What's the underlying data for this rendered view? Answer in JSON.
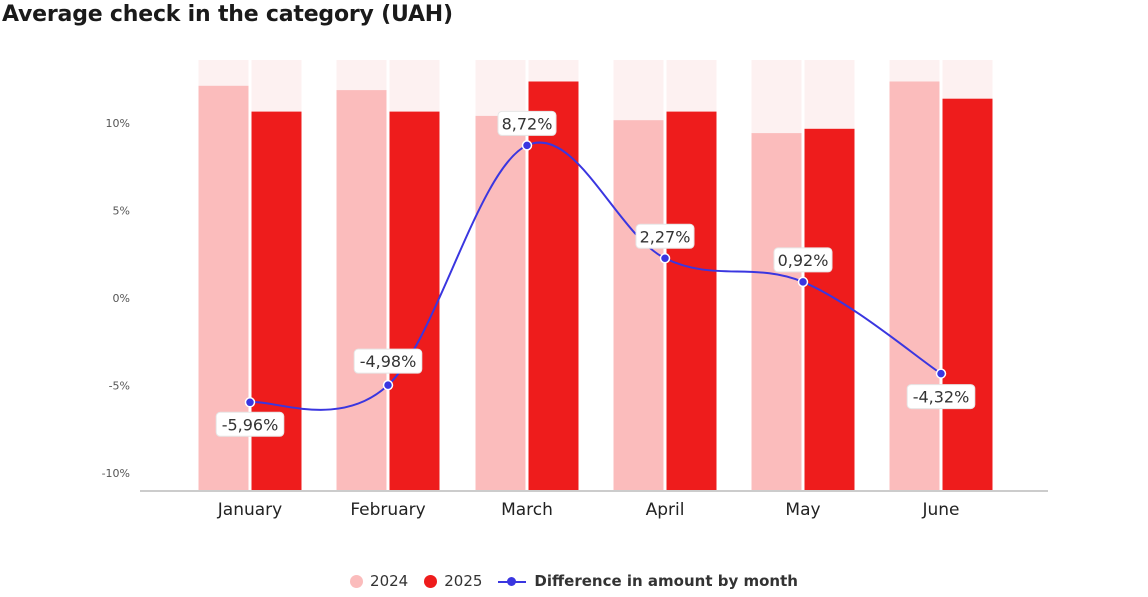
{
  "title": "Average check in the category (UAH)",
  "colors": {
    "bar_2024": "#fbbcbc",
    "bar_2025": "#ee1c1c",
    "bar_background": "#fdf1f1",
    "line": "#3a36e0",
    "axis": "#cccccc",
    "tick_text": "#555555"
  },
  "legend": {
    "s2024": "2024",
    "s2025": "2025",
    "diff": "Difference in amount by month"
  },
  "chart_data": {
    "type": "bar",
    "title": "Average check in the category (UAH)",
    "categories": [
      "January",
      "February",
      "March",
      "April",
      "May",
      "June"
    ],
    "series": [
      {
        "name": "2024",
        "type": "bar",
        "relative_heights": [
          0.94,
          0.93,
          0.87,
          0.86,
          0.83,
          0.95
        ]
      },
      {
        "name": "2025",
        "type": "bar",
        "relative_heights": [
          0.88,
          0.88,
          0.95,
          0.88,
          0.84,
          0.91
        ]
      },
      {
        "name": "Difference in amount by month",
        "type": "line",
        "axis": "y",
        "values": [
          -5.96,
          -4.98,
          8.72,
          2.27,
          0.92,
          -4.32
        ],
        "labels": [
          "-5,96%",
          "-4,98%",
          "8,72%",
          "2,27%",
          "0,92%",
          "-4,32%"
        ]
      }
    ],
    "y_ticks": [
      "10%",
      "5%",
      "0%",
      "-5%",
      "-10%"
    ],
    "y_tick_values": [
      10,
      5,
      0,
      -5,
      -10
    ],
    "ylim": [
      -10.8,
      13.7
    ],
    "xlabel": "",
    "ylabel": "",
    "grid": false,
    "legend_position": "bottom"
  }
}
